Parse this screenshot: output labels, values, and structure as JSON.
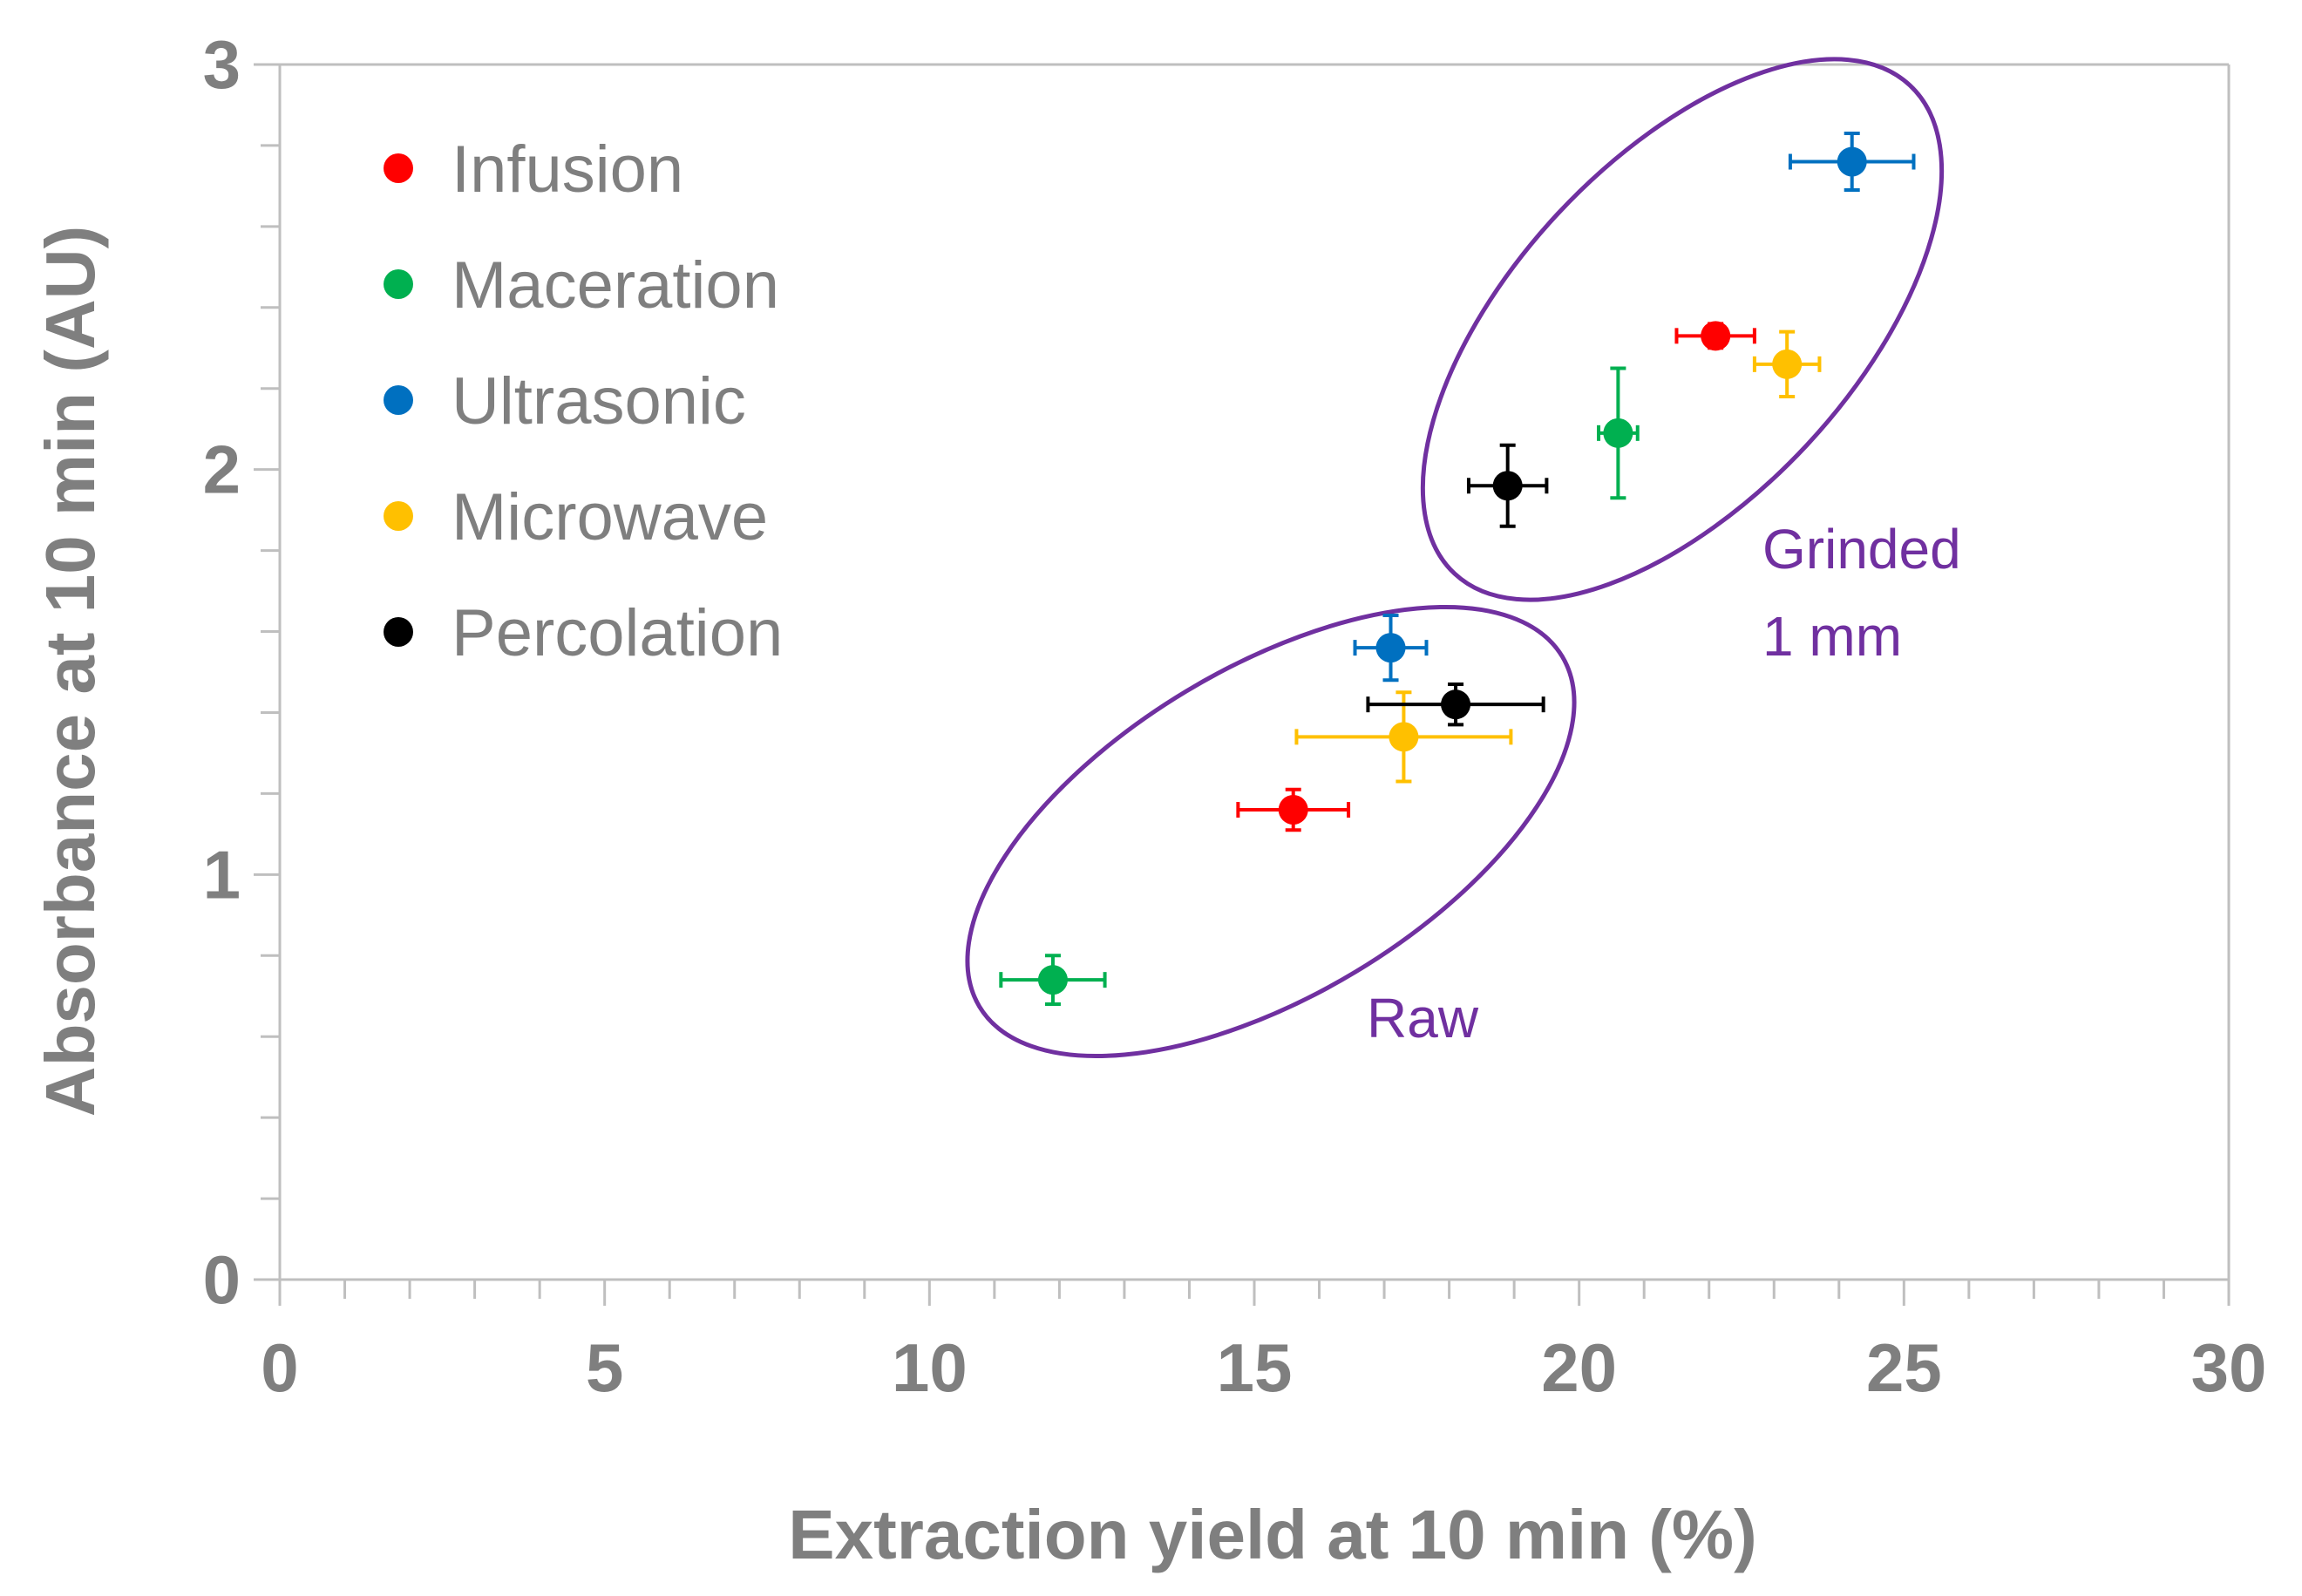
{
  "chart_data": {
    "type": "scatter",
    "xlabel": "Extraction yield at 10 min (%)",
    "ylabel": "Absorbance at 10 min (AU)",
    "xlim": [
      0,
      30
    ],
    "ylim": [
      0,
      3
    ],
    "x_major_ticks": [
      0,
      5,
      10,
      15,
      20,
      25,
      30
    ],
    "y_major_ticks": [
      0,
      1,
      2,
      3
    ],
    "x_tick_labels": [
      "0",
      "5",
      "10",
      "15",
      "20",
      "25",
      "30"
    ],
    "y_tick_labels": [
      "0",
      "1",
      "2",
      "3"
    ],
    "grid": false,
    "legend_position": "top-left",
    "series": [
      {
        "name": "Infusion",
        "color": "#ff0000",
        "points": [
          {
            "x": 15.6,
            "y": 1.16,
            "xerr": 0.85,
            "yerr": 0.05
          },
          {
            "x": 22.1,
            "y": 2.33,
            "xerr": 0.6,
            "yerr": 0.03
          }
        ]
      },
      {
        "name": "Maceration",
        "color": "#00b050",
        "points": [
          {
            "x": 11.9,
            "y": 0.74,
            "xerr": 0.8,
            "yerr": 0.06
          },
          {
            "x": 20.6,
            "y": 2.09,
            "xerr": 0.3,
            "yerr": 0.16
          }
        ]
      },
      {
        "name": "Ultrasonic",
        "color": "#0070c0",
        "points": [
          {
            "x": 17.1,
            "y": 1.56,
            "xerr": 0.55,
            "yerr": 0.08
          },
          {
            "x": 24.2,
            "y": 2.76,
            "xerr": 0.95,
            "yerr": 0.07
          }
        ]
      },
      {
        "name": "Microwave",
        "color": "#ffc000",
        "points": [
          {
            "x": 17.3,
            "y": 1.34,
            "xerr": 1.65,
            "yerr": 0.11
          },
          {
            "x": 23.2,
            "y": 2.26,
            "xerr": 0.5,
            "yerr": 0.08
          }
        ]
      },
      {
        "name": "Percolation",
        "color": "#000000",
        "points": [
          {
            "x": 18.1,
            "y": 1.42,
            "xerr": 1.35,
            "yerr": 0.05
          },
          {
            "x": 18.9,
            "y": 1.96,
            "xerr": 0.6,
            "yerr": 0.1
          }
        ]
      }
    ],
    "annotations": [
      {
        "text": "Raw",
        "group": "raw"
      },
      {
        "text": "Grinded",
        "group": "grinded"
      },
      {
        "text": "1 mm",
        "group": "grinded"
      }
    ],
    "annotation_color": "#7030a0"
  }
}
